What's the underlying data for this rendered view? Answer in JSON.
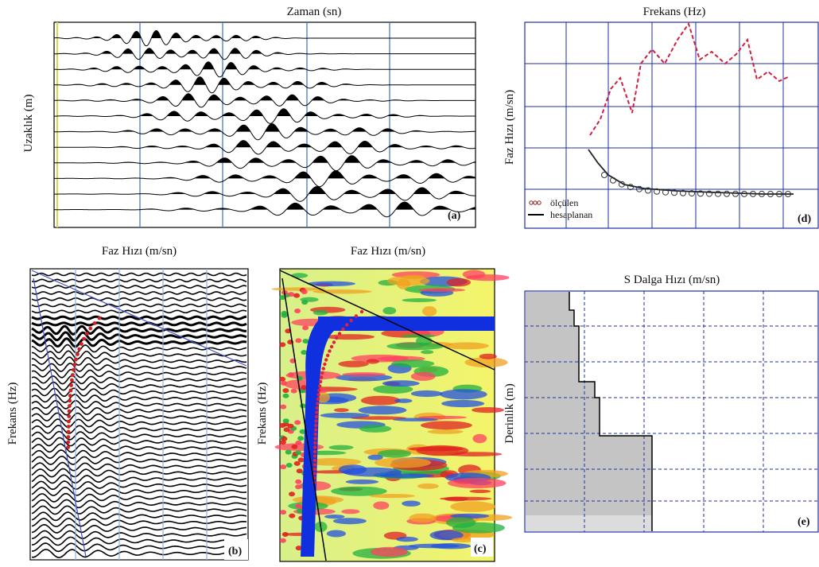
{
  "panels": {
    "a": {
      "title": "Zaman (sn)",
      "y_label": "Uzaklık (m)",
      "label": "(a)"
    },
    "b": {
      "title": "Faz Hızı (m/sn)",
      "y_label": "Frekans (Hz)",
      "label": "(b)"
    },
    "c": {
      "title": "Faz Hızı (m/sn)",
      "y_label": "Frekans (Hz)",
      "label": "(c)"
    },
    "d": {
      "title": "Frekans (Hz)",
      "y_label": "Faz Hızı (m/sn)",
      "legend": [
        "ölçülen",
        "hesaplanan"
      ],
      "label": "(d)"
    },
    "e": {
      "title": "S Dalga Hızı (m/sn)",
      "y_label": "Derinlik (m)",
      "label": "(e)"
    }
  }
}
